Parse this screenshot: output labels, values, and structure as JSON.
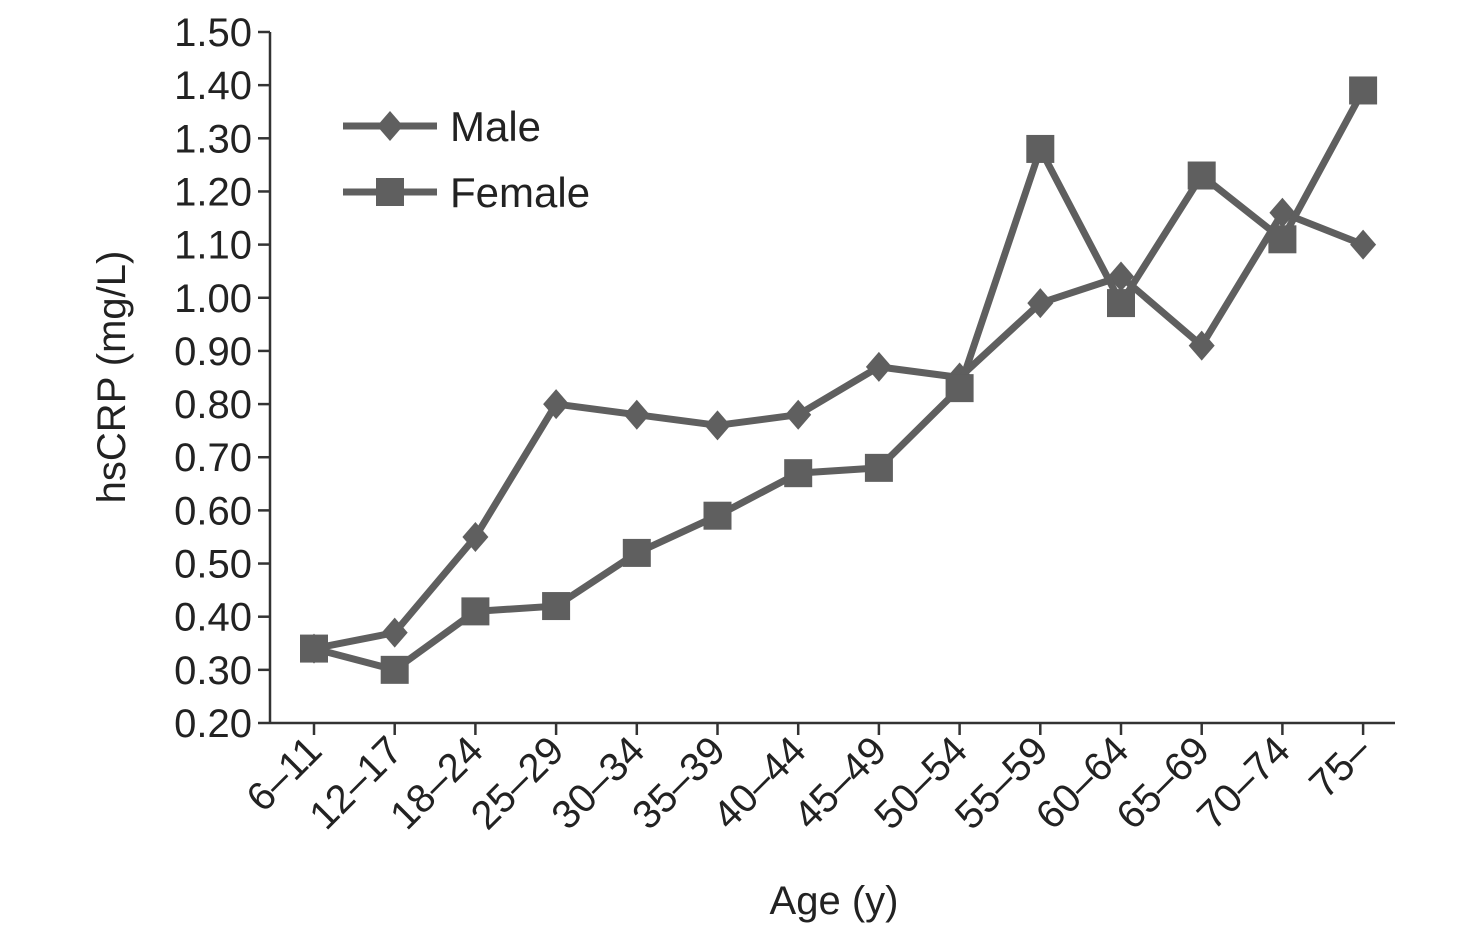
{
  "chart_data": {
    "type": "line",
    "title": "",
    "xlabel": "Age (y)",
    "ylabel": "hsCRP (mg/L)",
    "ylim": [
      0.2,
      1.5
    ],
    "yticks": [
      "0.20",
      "0.30",
      "0.40",
      "0.50",
      "0.60",
      "0.70",
      "0.80",
      "0.90",
      "1.00",
      "1.10",
      "1.20",
      "1.30",
      "1.40",
      "1.50"
    ],
    "categories": [
      "6–11",
      "12–17",
      "18–24",
      "25–29",
      "30–34",
      "35–39",
      "40–44",
      "45–49",
      "50–54",
      "55–59",
      "60–64",
      "65–69",
      "70–74",
      "75–"
    ],
    "series": [
      {
        "name": "Male",
        "marker": "diamond",
        "color": "#5f5f5f",
        "values": [
          0.34,
          0.37,
          0.55,
          0.8,
          0.78,
          0.76,
          0.78,
          0.87,
          0.85,
          0.99,
          1.04,
          0.91,
          1.16,
          1.1
        ]
      },
      {
        "name": "Female",
        "marker": "square",
        "color": "#5f5f5f",
        "values": [
          0.34,
          0.3,
          0.41,
          0.42,
          0.52,
          0.59,
          0.67,
          0.68,
          0.83,
          1.28,
          0.99,
          1.23,
          1.11,
          1.39
        ]
      }
    ],
    "grid": false,
    "legend": "top-left",
    "axis_color": "#333333"
  }
}
